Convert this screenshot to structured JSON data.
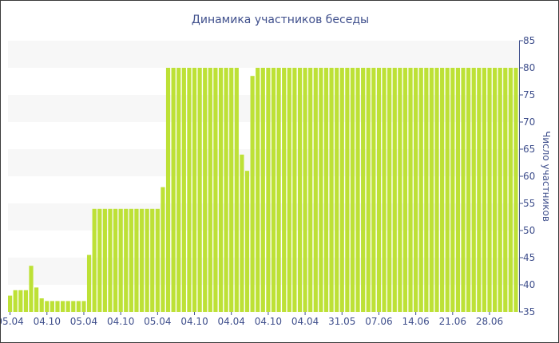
{
  "chart_data": {
    "type": "bar",
    "title": "Динамика участников беседы",
    "ylabel": "Число участников",
    "xlabel": "",
    "ylim": [
      35,
      85
    ],
    "yticks": [
      35,
      40,
      45,
      50,
      55,
      60,
      65,
      70,
      75,
      80,
      85
    ],
    "y_axis_side": "right",
    "grid": "alternating horizontal bands",
    "bar_color": "#bde136",
    "band_color": "#f7f7f7",
    "text_color": "#3f4f8c",
    "xtick_labels": [
      "05.04",
      "04.10",
      "05.04",
      "04.10",
      "05.04",
      "04.10",
      "04.04",
      "04.10",
      "04.04",
      "31.05",
      "07.06",
      "14.06",
      "21.06",
      "28.06"
    ],
    "xtick_positions": [
      0,
      7,
      14,
      21,
      28,
      35,
      42,
      49,
      56,
      63,
      70,
      77,
      84,
      91
    ],
    "values": [
      38,
      39,
      39,
      39,
      43.5,
      39.5,
      37.5,
      37,
      37,
      37,
      37,
      37,
      37,
      37,
      37,
      45.5,
      54,
      54,
      54,
      54,
      54,
      54,
      54,
      54,
      54,
      54,
      54,
      54,
      54,
      58,
      80,
      80,
      80,
      80,
      80,
      80,
      80,
      80,
      80,
      80,
      80,
      80,
      80,
      80,
      64,
      61,
      78.5,
      80,
      80,
      80,
      80,
      80,
      80,
      80,
      80,
      80,
      80,
      80,
      80,
      80,
      80,
      80,
      80,
      80,
      80,
      80,
      80,
      80,
      80,
      80,
      80,
      80,
      80,
      80,
      80,
      80,
      80,
      80,
      80,
      80,
      80,
      80,
      80,
      80,
      80,
      80,
      80,
      80,
      80,
      80,
      80,
      80,
      80,
      80,
      80,
      80,
      80
    ]
  }
}
